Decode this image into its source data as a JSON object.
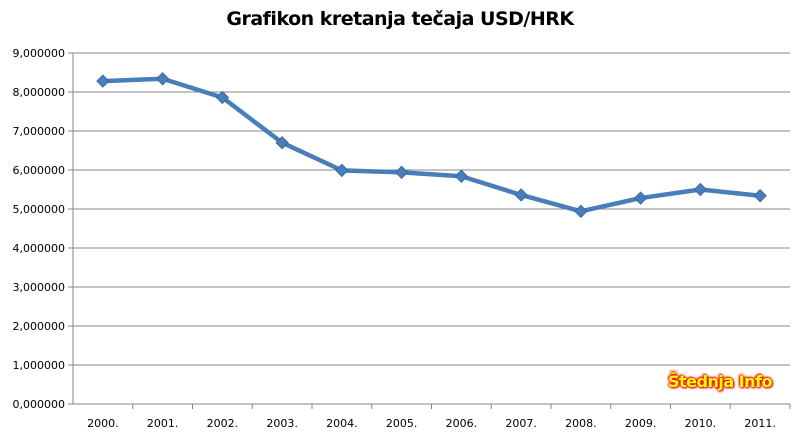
{
  "chart_data": {
    "type": "line",
    "title": "Grafikon kretanja tečaja USD/HRK",
    "xlabel": "",
    "ylabel": "",
    "categories": [
      "2000.",
      "2001.",
      "2002.",
      "2003.",
      "2004.",
      "2005.",
      "2006.",
      "2007.",
      "2008.",
      "2009.",
      "2010.",
      "2011."
    ],
    "series": [
      {
        "values": [
          8.28,
          8.34,
          7.86,
          6.7,
          5.99,
          5.94,
          5.84,
          5.36,
          4.94,
          5.28,
          5.5,
          5.34
        ],
        "color": "#4a7ebb",
        "marker": "diamond"
      }
    ],
    "ylim": [
      0,
      9
    ],
    "yticks": [
      "0,000000",
      "1,000000",
      "2,000000",
      "3,000000",
      "4,000000",
      "5,000000",
      "6,000000",
      "7,000000",
      "8,000000",
      "9,000000"
    ],
    "grid": true,
    "legend": "none"
  },
  "watermark": "Štednja Info"
}
